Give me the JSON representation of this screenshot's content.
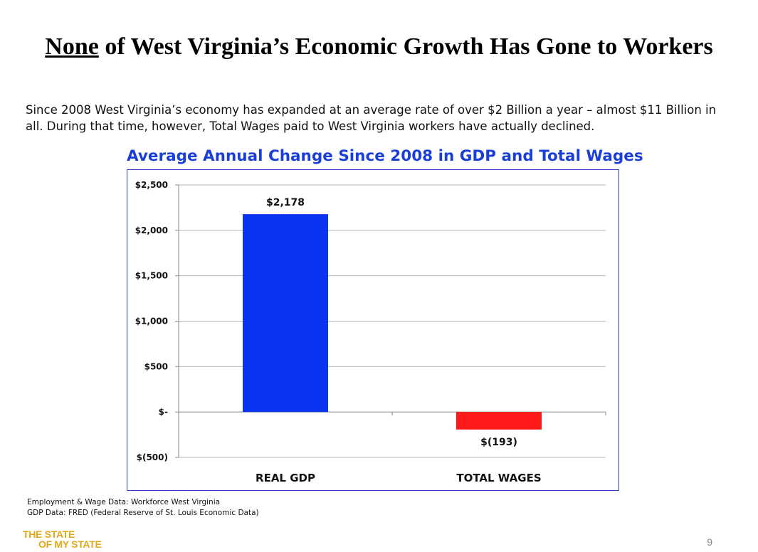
{
  "slide": {
    "title_emphasis": "None",
    "title_rest": " of West Virginia’s Economic Growth Has Gone to Workers",
    "intro": "Since 2008 West Virginia’s economy has expanded at an average rate of over $2 Billion a year – almost $11 Billion in all.  During that time, however, Total Wages paid to West Virginia workers have actually declined.",
    "sources": [
      "Employment & Wage Data:  Workforce West Virginia",
      "GDP  Data:  FRED (Federal Reserve of St. Louis Economic Data)"
    ],
    "logo_line1": "THE STATE",
    "logo_line2": "OF MY STATE",
    "page_number": "9"
  },
  "chart_data": {
    "type": "bar",
    "title": "Average Annual Change Since 2008 in GDP and Total Wages",
    "categories": [
      "REAL GDP",
      "TOTAL WAGES"
    ],
    "values": [
      2178,
      -193
    ],
    "data_labels": [
      "$2,178",
      "$(193)"
    ],
    "colors": [
      "#0a35f0",
      "#ff1a1a"
    ],
    "ylim": [
      -500,
      2500
    ],
    "yticks": [
      2500,
      2000,
      1500,
      1000,
      500,
      0,
      -500
    ],
    "ytick_labels": [
      "$2,500",
      "$2,000",
      "$1,500",
      "$1,000",
      "$500",
      "$-",
      "$(500)"
    ],
    "grid": true,
    "xlabel": "",
    "ylabel": ""
  }
}
